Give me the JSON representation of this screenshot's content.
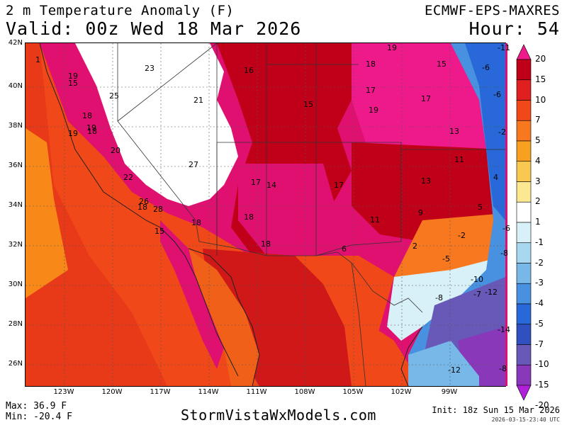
{
  "header": {
    "title": "2 m Temperature Anomaly (F)",
    "valid": "Valid: 00z Wed 18 Mar 2026",
    "model": "ECMWF-EPS-MAXRES",
    "hour": "Hour: 54"
  },
  "axes": {
    "lat_labels": [
      "42N",
      "40N",
      "38N",
      "36N",
      "34N",
      "32N",
      "30N",
      "28N",
      "26N"
    ],
    "lon_labels": [
      "123W",
      "120W",
      "117W",
      "114W",
      "111W",
      "108W",
      "105W",
      "102W",
      "99W"
    ]
  },
  "colorbar": {
    "levels": [
      "20",
      "15",
      "10",
      "7",
      "5",
      "4",
      "3",
      "2",
      "1",
      "-1",
      "-2",
      "-3",
      "-4",
      "-5",
      "-7",
      "-10",
      "-15",
      "-20"
    ],
    "colors": [
      "#ee1a8c",
      "#c00018",
      "#e02020",
      "#f04818",
      "#f87820",
      "#f8a020",
      "#f8c850",
      "#fce890",
      "#ffffff",
      "#d8f0f8",
      "#a8d8f0",
      "#78b8e8",
      "#4890e0",
      "#2868d8",
      "#3050c0",
      "#6858b8",
      "#8838b8",
      "#b020d8"
    ]
  },
  "map_values": [
    "1",
    "23",
    "16",
    "18",
    "19",
    "15",
    "19",
    "15",
    "25",
    "21",
    "18",
    "19",
    "17",
    "15",
    "19",
    "17",
    "13",
    "18",
    "19",
    "20",
    "27",
    "17",
    "14",
    "17",
    "13",
    "11",
    "22",
    "26",
    "18",
    "28",
    "18",
    "18",
    "9",
    "15",
    "11",
    "18",
    "6",
    "2",
    "-2",
    "-5",
    "-8",
    "-10",
    "-7",
    "-14",
    "-12",
    "-11",
    "-6",
    "-6",
    "-2",
    "4",
    "5",
    "-6",
    "-8",
    "-12",
    "-8"
  ],
  "footer": {
    "max": "Max: 36.9 F",
    "min": "Min: -20.4 F",
    "site": "StormVistaWxModels.com",
    "init": "Init: 18z Sun 15 Mar 2026",
    "stamp": "2026-03-15-23:40 UTC"
  }
}
